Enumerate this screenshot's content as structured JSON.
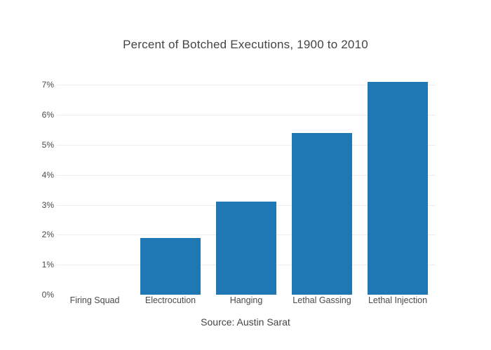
{
  "page": {
    "background": "#ffffff"
  },
  "chart_data": {
    "type": "bar",
    "title": "Percent of Botched Executions, 1900 to 2010",
    "caption": "Source: Austin Sarat",
    "categories": [
      "Firing Squad",
      "Electrocution",
      "Hanging",
      "Lethal Gassing",
      "Lethal Injection"
    ],
    "values": [
      0,
      1.9,
      3.1,
      5.4,
      7.1
    ],
    "xlabel": "",
    "ylabel": "",
    "ylim": [
      0,
      7.5
    ],
    "ytick_values": [
      0,
      1,
      2,
      3,
      4,
      5,
      6,
      7
    ],
    "ytick_labels": [
      "0%",
      "1%",
      "2%",
      "3%",
      "4%",
      "5%",
      "6%",
      "7%"
    ],
    "grid": true,
    "zeroline": false,
    "legend_position": "none",
    "bar_color": "#1f77b4",
    "grid_color": "#ececec",
    "text_color": "#444444"
  }
}
